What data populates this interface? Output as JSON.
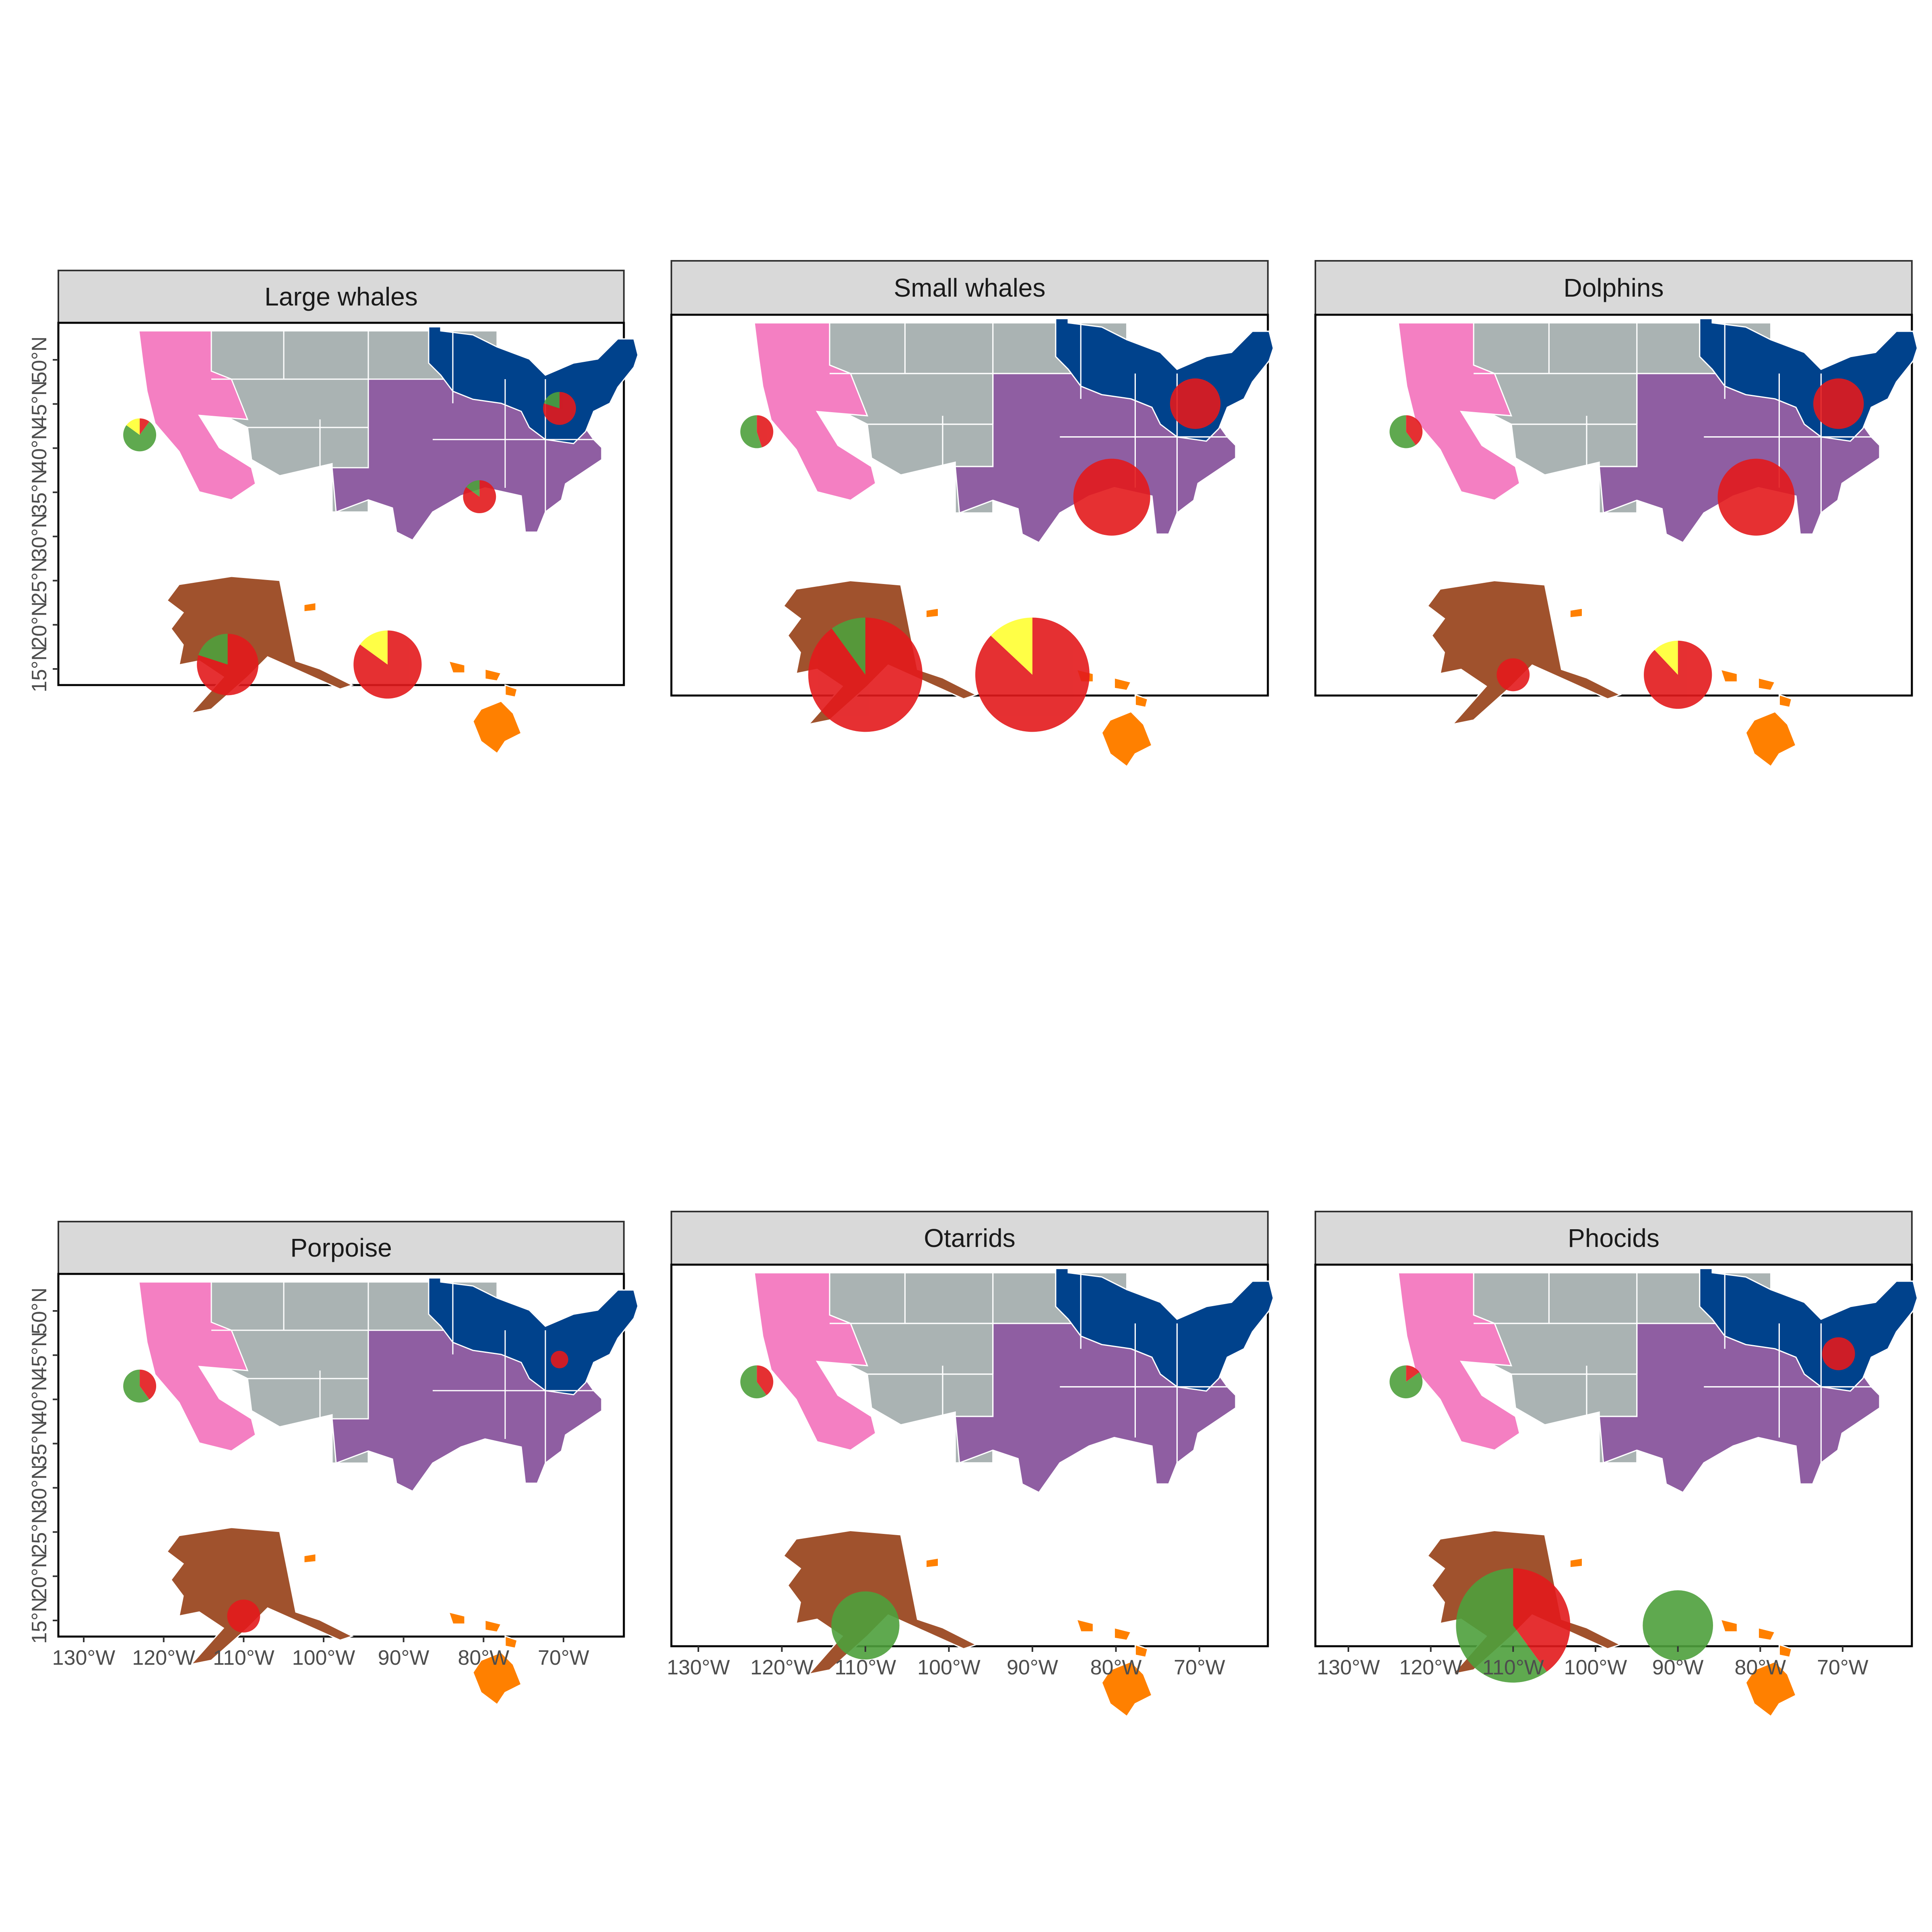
{
  "figure": {
    "longitude_ticks": [
      "130°W",
      "120°W",
      "110°W",
      "100°W",
      "90°W",
      "80°W",
      "70°W"
    ],
    "latitude_ticks": [
      "15°N",
      "20°N",
      "25°N",
      "30°N",
      "35°N",
      "40°N",
      "45°N",
      "50°N"
    ]
  },
  "region_colors": {
    "pacific": "#f47fc2",
    "mountain": "#aab3b3",
    "central": "#8f5ea2",
    "northeast": "#00428c",
    "alaska": "#a0522d",
    "hawaii": "#ff8000"
  },
  "slice_colors": {
    "red": "#e31a1c",
    "green": "#4ea03c",
    "yellow": "#ffff33"
  },
  "chart_data": [
    {
      "type": "map-pie",
      "title": "Large whales",
      "pies": [
        {
          "site": "west-coast",
          "lon": -123,
          "lat": 41.5,
          "size": 0.75,
          "slices": {
            "red": 0.1,
            "green": 0.75,
            "yellow": 0.15
          }
        },
        {
          "site": "northeast",
          "lon": -70.5,
          "lat": 44.5,
          "size": 0.75,
          "slices": {
            "red": 0.8,
            "green": 0.2
          }
        },
        {
          "site": "southeast",
          "lon": -80.5,
          "lat": 34.5,
          "size": 0.75,
          "slices": {
            "red": 0.85,
            "green": 0.15
          }
        },
        {
          "site": "alaska",
          "lon": -112,
          "lat": 15.5,
          "size": 1.4,
          "slices": {
            "red": 0.8,
            "green": 0.2
          }
        },
        {
          "site": "hawaii",
          "lon": -92,
          "lat": 15.5,
          "size": 1.55,
          "slices": {
            "red": 0.85,
            "yellow": 0.15
          }
        }
      ]
    },
    {
      "type": "map-pie",
      "title": "Small whales",
      "pies": [
        {
          "site": "west-coast",
          "lon": -123,
          "lat": 41.5,
          "size": 0.75,
          "slices": {
            "red": 0.45,
            "green": 0.55
          }
        },
        {
          "site": "northeast",
          "lon": -70.5,
          "lat": 44.5,
          "size": 1.15,
          "slices": {
            "red": 1.0
          }
        },
        {
          "site": "southeast",
          "lon": -80.5,
          "lat": 34.5,
          "size": 1.75,
          "slices": {
            "red": 1.0
          }
        },
        {
          "site": "alaska",
          "lon": -110,
          "lat": 15.5,
          "size": 2.6,
          "slices": {
            "red": 0.9,
            "green": 0.1
          }
        },
        {
          "site": "hawaii",
          "lon": -90,
          "lat": 15.5,
          "size": 2.6,
          "slices": {
            "red": 0.87,
            "yellow": 0.13
          }
        }
      ]
    },
    {
      "type": "map-pie",
      "title": "Dolphins",
      "pies": [
        {
          "site": "west-coast",
          "lon": -123,
          "lat": 41.5,
          "size": 0.75,
          "slices": {
            "red": 0.4,
            "green": 0.6
          }
        },
        {
          "site": "northeast",
          "lon": -70.5,
          "lat": 44.5,
          "size": 1.15,
          "slices": {
            "red": 1.0
          }
        },
        {
          "site": "southeast",
          "lon": -80.5,
          "lat": 34.5,
          "size": 1.75,
          "slices": {
            "red": 1.0
          }
        },
        {
          "site": "alaska",
          "lon": -110,
          "lat": 15.5,
          "size": 0.75,
          "slices": {
            "red": 1.0
          }
        },
        {
          "site": "hawaii",
          "lon": -90,
          "lat": 15.5,
          "size": 1.55,
          "slices": {
            "red": 0.88,
            "yellow": 0.12
          }
        }
      ]
    },
    {
      "type": "map-pie",
      "title": "Porpoise",
      "pies": [
        {
          "site": "west-coast",
          "lon": -123,
          "lat": 41.5,
          "size": 0.75,
          "slices": {
            "red": 0.4,
            "green": 0.6
          }
        },
        {
          "site": "northeast",
          "lon": -70.5,
          "lat": 44.5,
          "size": 0.4,
          "slices": {
            "red": 1.0
          }
        },
        {
          "site": "alaska",
          "lon": -110,
          "lat": 15.5,
          "size": 0.75,
          "slices": {
            "red": 1.0
          }
        }
      ]
    },
    {
      "type": "map-pie",
      "title": "Otarrids",
      "pies": [
        {
          "site": "west-coast",
          "lon": -123,
          "lat": 41.5,
          "size": 0.75,
          "slices": {
            "red": 0.4,
            "green": 0.6
          }
        },
        {
          "site": "alaska",
          "lon": -110,
          "lat": 15.5,
          "size": 1.55,
          "slices": {
            "green": 1.0
          }
        }
      ]
    },
    {
      "type": "map-pie",
      "title": "Phocids",
      "pies": [
        {
          "site": "west-coast",
          "lon": -123,
          "lat": 41.5,
          "size": 0.75,
          "slices": {
            "red": 0.15,
            "green": 0.85
          }
        },
        {
          "site": "northeast",
          "lon": -70.5,
          "lat": 44.5,
          "size": 0.75,
          "slices": {
            "red": 1.0
          }
        },
        {
          "site": "alaska",
          "lon": -110,
          "lat": 15.5,
          "size": 2.6,
          "slices": {
            "red": 0.4,
            "green": 0.6
          }
        },
        {
          "site": "hawaii",
          "lon": -90,
          "lat": 15.5,
          "size": 1.6,
          "slices": {
            "green": 1.0
          }
        }
      ]
    }
  ]
}
